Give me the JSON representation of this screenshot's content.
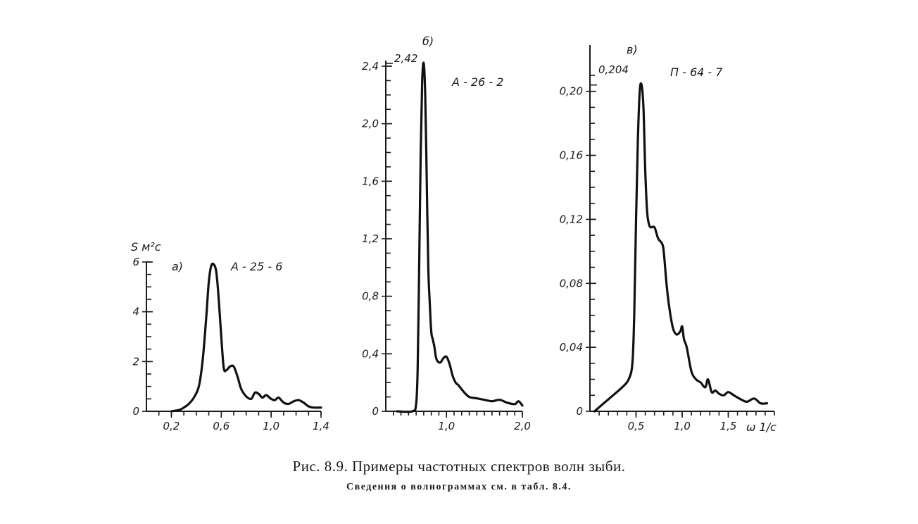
{
  "caption": {
    "title": "Рис. 8.9. Примеры частотных спектров волн зыби.",
    "subtitle": "Сведения о волнограммах см. в табл. 8.4."
  },
  "chart_data": [
    {
      "type": "line",
      "panel_label": "а)",
      "title": "А - 25 - 6",
      "ylabel": "S м²с",
      "xlabel": "",
      "xlim": [
        0,
        1.4
      ],
      "ylim": [
        0,
        6
      ],
      "x_tick_labels": [
        "0,2",
        "0,6",
        "1,0",
        "1,4"
      ],
      "x_tick_values": [
        0.2,
        0.6,
        1.0,
        1.4
      ],
      "y_tick_labels": [
        "0",
        "2",
        "4",
        "6"
      ],
      "y_tick_values": [
        0,
        2,
        4,
        6
      ],
      "series": [
        {
          "x": [
            0.2,
            0.26,
            0.3,
            0.34,
            0.38,
            0.42,
            0.45,
            0.48,
            0.5,
            0.52,
            0.54,
            0.56,
            0.58,
            0.6,
            0.62,
            0.64,
            0.67,
            0.7,
            0.73,
            0.76,
            0.8,
            0.84,
            0.87,
            0.9,
            0.93,
            0.96,
            1.0,
            1.03,
            1.06,
            1.1,
            1.14,
            1.18,
            1.22,
            1.26,
            1.3,
            1.34,
            1.4
          ],
          "y": [
            0.0,
            0.05,
            0.15,
            0.3,
            0.55,
            1.0,
            2.0,
            3.8,
            5.2,
            5.85,
            5.9,
            5.6,
            4.5,
            3.0,
            1.75,
            1.65,
            1.8,
            1.8,
            1.4,
            0.9,
            0.6,
            0.5,
            0.75,
            0.7,
            0.55,
            0.65,
            0.5,
            0.45,
            0.55,
            0.35,
            0.3,
            0.4,
            0.45,
            0.35,
            0.2,
            0.15,
            0.15
          ]
        }
      ]
    },
    {
      "type": "line",
      "panel_label": "б)",
      "title": "А - 26 - 2",
      "ylabel": "",
      "xlabel": "",
      "xlim": [
        0.2,
        2.0
      ],
      "ylim": [
        0,
        2.4
      ],
      "x_tick_labels": [
        "1,0",
        "2,0"
      ],
      "x_tick_values": [
        1.0,
        2.0
      ],
      "y_tick_labels": [
        "0",
        "0,4",
        "0,8",
        "1,2",
        "1,6",
        "2,0",
        "2,4"
      ],
      "y_tick_values": [
        0,
        0.4,
        0.8,
        1.2,
        1.6,
        2.0,
        2.4
      ],
      "peak_label": "2,42",
      "peak_value": 2.42,
      "series": [
        {
          "x": [
            0.35,
            0.55,
            0.6,
            0.62,
            0.64,
            0.66,
            0.68,
            0.7,
            0.72,
            0.74,
            0.76,
            0.78,
            0.8,
            0.82,
            0.84,
            0.86,
            0.88,
            0.92,
            0.96,
            1.0,
            1.04,
            1.08,
            1.12,
            1.16,
            1.22,
            1.3,
            1.4,
            1.5,
            1.6,
            1.7,
            1.8,
            1.9,
            1.95,
            2.0
          ],
          "y": [
            0.0,
            0.0,
            0.05,
            0.3,
            1.0,
            1.8,
            2.3,
            2.42,
            2.2,
            1.6,
            1.0,
            0.75,
            0.55,
            0.5,
            0.45,
            0.38,
            0.35,
            0.34,
            0.37,
            0.38,
            0.33,
            0.25,
            0.2,
            0.18,
            0.14,
            0.1,
            0.09,
            0.08,
            0.07,
            0.08,
            0.06,
            0.05,
            0.07,
            0.04
          ]
        }
      ]
    },
    {
      "type": "line",
      "panel_label": "в)",
      "title": "П - 64 - 7",
      "ylabel": "",
      "xlabel": "ω 1/с",
      "xlim": [
        0,
        2.0
      ],
      "ylim": [
        0,
        0.22
      ],
      "x_tick_labels": [
        "0,5",
        "1,0",
        "1,5"
      ],
      "x_tick_values": [
        0.5,
        1.0,
        1.5
      ],
      "y_tick_labels": [
        "0",
        "0,04",
        "0,08",
        "0,12",
        "0,16",
        "0,20"
      ],
      "y_tick_values": [
        0,
        0.04,
        0.08,
        0.12,
        0.16,
        0.2
      ],
      "peak_label": "0,204",
      "peak_value": 0.204,
      "series": [
        {
          "x": [
            0.05,
            0.15,
            0.25,
            0.35,
            0.42,
            0.46,
            0.48,
            0.5,
            0.52,
            0.54,
            0.56,
            0.58,
            0.6,
            0.62,
            0.64,
            0.66,
            0.7,
            0.74,
            0.78,
            0.8,
            0.83,
            0.86,
            0.9,
            0.94,
            0.98,
            1.0,
            1.02,
            1.05,
            1.1,
            1.15,
            1.2,
            1.25,
            1.28,
            1.32,
            1.36,
            1.4,
            1.45,
            1.5,
            1.56,
            1.62,
            1.7,
            1.78,
            1.85,
            1.92
          ],
          "y": [
            0.0,
            0.005,
            0.01,
            0.015,
            0.02,
            0.03,
            0.06,
            0.12,
            0.17,
            0.2,
            0.204,
            0.19,
            0.15,
            0.125,
            0.117,
            0.115,
            0.115,
            0.108,
            0.105,
            0.1,
            0.08,
            0.065,
            0.052,
            0.048,
            0.05,
            0.053,
            0.045,
            0.04,
            0.025,
            0.02,
            0.018,
            0.015,
            0.02,
            0.012,
            0.013,
            0.011,
            0.01,
            0.012,
            0.01,
            0.008,
            0.006,
            0.008,
            0.005,
            0.005
          ]
        }
      ]
    }
  ]
}
